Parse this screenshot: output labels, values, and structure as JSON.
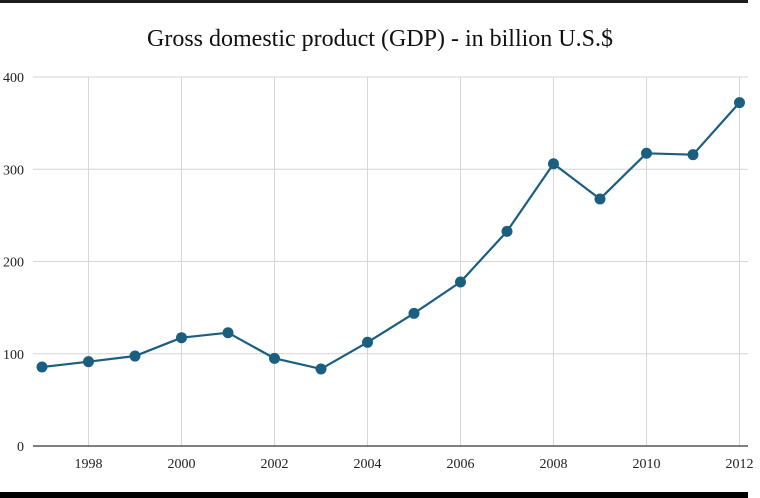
{
  "chart_data": {
    "type": "line",
    "title": "Gross domestic product (GDP) - in billion U.S.$",
    "xlabel": "",
    "ylabel": "",
    "x": [
      1997,
      1998,
      1999,
      2000,
      2001,
      2002,
      2003,
      2004,
      2005,
      2006,
      2007,
      2008,
      2009,
      2010,
      2011,
      2012
    ],
    "series": [
      {
        "name": "GDP",
        "values": [
          85.6,
          91.4,
          97.5,
          117.4,
          122.8,
          95.0,
          83.5,
          112.4,
          143.8,
          177.8,
          232.7,
          306.0,
          267.8,
          317.3,
          315.8,
          372.2
        ],
        "color": "#1b5f80"
      }
    ],
    "ylim": [
      0,
      400
    ],
    "xlim": [
      1997,
      2012
    ],
    "y_ticks": [
      "0",
      "100",
      "200",
      "300",
      "400"
    ],
    "x_ticks": [
      "1998",
      "2000",
      "2002",
      "2004",
      "2006",
      "2008",
      "2010",
      "2012"
    ],
    "x_tick_values": [
      1998,
      2000,
      2002,
      2004,
      2006,
      2008,
      2010,
      2012
    ],
    "y_tick_values": [
      0,
      100,
      200,
      300,
      400
    ],
    "grid": true,
    "legend": "none"
  }
}
